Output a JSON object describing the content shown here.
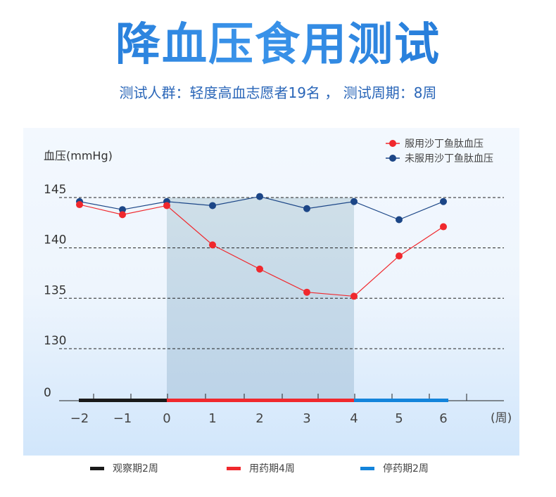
{
  "header": {
    "title": "降血压食用测试",
    "subtitle": "测试人群：轻度高血志愿者19名 ， 测试周期：8周"
  },
  "colors": {
    "treated": "#f0282d",
    "untreated": "#1c4687",
    "observe": "#1a1a1a",
    "medicate": "#f0282d",
    "stop": "#1384db",
    "shade": "#bcd3e4"
  },
  "chart_data": {
    "type": "line",
    "ylabel": "血压(mmHg)",
    "xlabel": "(周)",
    "x": [
      -2,
      -1,
      0,
      1,
      2,
      3,
      4,
      5,
      6
    ],
    "x_tick_labels": [
      "−2",
      "−1",
      "0",
      "1",
      "2",
      "3",
      "4",
      "5",
      "6"
    ],
    "y_ticks": [
      0,
      130,
      135,
      140,
      145
    ],
    "y_tick_labels": [
      "0",
      "130",
      "135",
      "140",
      "145"
    ],
    "ylim": [
      130,
      145
    ],
    "axis_break": true,
    "grid": "dashed horizontal",
    "legend": "top-right",
    "series": [
      {
        "name": "服用沙丁鱼肽血压",
        "color": "#f0282d",
        "values": [
          144.3,
          143.3,
          144.2,
          140.3,
          137.9,
          135.6,
          135.2,
          139.2,
          142.1
        ]
      },
      {
        "name": "未服用沙丁鱼肽血压",
        "color": "#1c4687",
        "values": [
          144.6,
          143.8,
          144.6,
          144.2,
          145.1,
          143.9,
          144.6,
          142.8,
          144.6
        ]
      }
    ],
    "shaded_range": [
      0,
      4
    ],
    "phases": [
      {
        "label": "观察期2周",
        "from": -2,
        "to": 0,
        "color": "#1a1a1a"
      },
      {
        "label": "用药期4周",
        "from": 0,
        "to": 4,
        "color": "#f0282d"
      },
      {
        "label": "停药期2周",
        "from": 4,
        "to": 6,
        "color": "#1384db"
      }
    ]
  }
}
